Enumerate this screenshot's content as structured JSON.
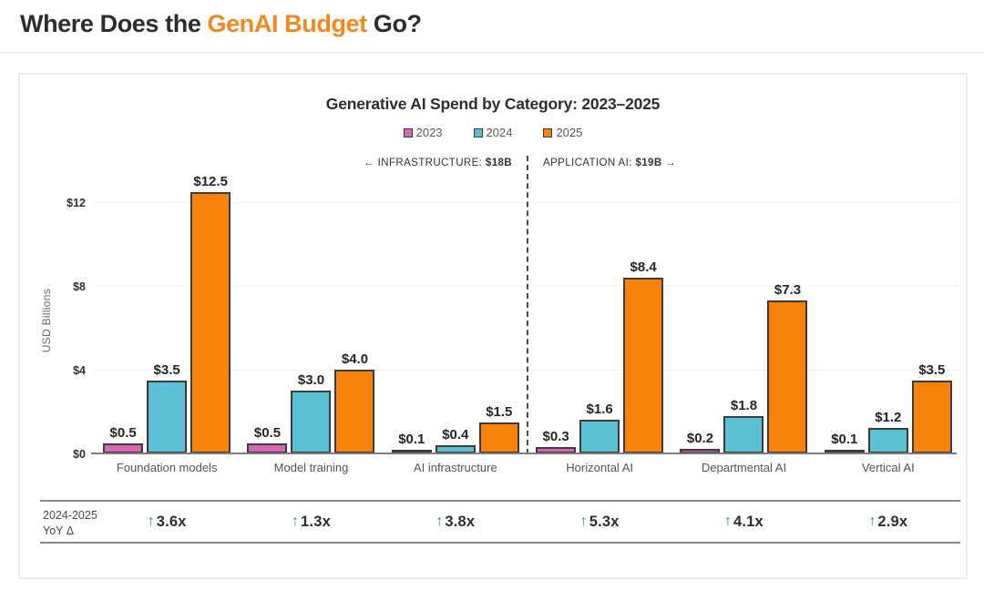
{
  "page": {
    "title_prefix": "Where Does the ",
    "title_highlight": "GenAI Budget",
    "title_suffix": " Go?",
    "accent_color": "#F6871E"
  },
  "chart_data": {
    "type": "bar",
    "title": "Generative AI Spend by Category: 2023–2025",
    "legend_position": "top",
    "ylabel": "USD Billions",
    "yticks": [
      "$0",
      "$4",
      "$8",
      "$12"
    ],
    "ylim": [
      0,
      14
    ],
    "grid": true,
    "categories": [
      "Foundation models",
      "Model training",
      "AI infrastructure",
      "Horizontal AI",
      "Departmental AI",
      "Vertical AI"
    ],
    "series": [
      {
        "name": "2023",
        "color": "#D767B5",
        "values": [
          0.5,
          0.5,
          0.1,
          0.3,
          0.2,
          0.1
        ]
      },
      {
        "name": "2024",
        "color": "#5BC0D4",
        "values": [
          3.5,
          3.0,
          0.4,
          1.6,
          1.8,
          1.2
        ]
      },
      {
        "name": "2025",
        "color": "#F8820C",
        "values": [
          12.5,
          4.0,
          1.5,
          8.4,
          7.3,
          3.5
        ]
      }
    ],
    "annotations": {
      "left": {
        "arrow": "←",
        "label": "INFRASTRUCTURE:",
        "value": "$18B"
      },
      "right": {
        "label": "APPLICATION AI:",
        "value": "$19B",
        "arrow": "→"
      }
    },
    "yoy": {
      "label_line1": "2024-2025",
      "label_line2": "YoY Δ",
      "deltas": [
        "3.6x",
        "1.3x",
        "3.8x",
        "5.3x",
        "4.1x",
        "2.9x"
      ],
      "arrow_color": "#23A24D"
    }
  }
}
